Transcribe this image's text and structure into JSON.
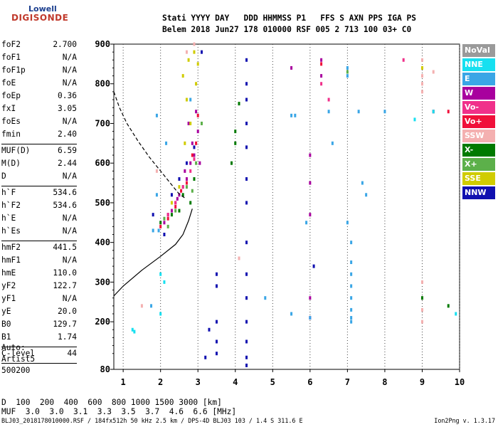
{
  "logo": {
    "line1": "Lowell",
    "line2": "DIGISONDE"
  },
  "header": {
    "line1": "Stati YYYY DAY   DDD HHMMSS P1   FFS S AXN PPS IGA PS",
    "line2": "Belem 2018 Jun27 178 010000 RSF 005 2 713 100 03+ C0"
  },
  "params": [
    {
      "k": "foF2",
      "v": "2.700"
    },
    {
      "k": "foF1",
      "v": "N/A"
    },
    {
      "k": "foF1p",
      "v": "N/A"
    },
    {
      "k": "foE",
      "v": "N/A"
    },
    {
      "k": "foEp",
      "v": "0.36"
    },
    {
      "k": "fxI",
      "v": "3.05"
    },
    {
      "k": "foEs",
      "v": "N/A"
    },
    {
      "k": "fmin",
      "v": "2.40"
    },
    {
      "sep": true
    },
    {
      "k": "MUF(D)",
      "v": "6.59"
    },
    {
      "k": "M(D)",
      "v": "2.44"
    },
    {
      "k": "D",
      "v": "N/A"
    },
    {
      "sep": true
    },
    {
      "k": "h`F",
      "v": "534.6"
    },
    {
      "k": "h`F2",
      "v": "534.6"
    },
    {
      "k": "h`E",
      "v": "N/A"
    },
    {
      "k": "h`Es",
      "v": "N/A"
    },
    {
      "sep": true
    },
    {
      "k": "hmF2",
      "v": "441.5"
    },
    {
      "k": "hmF1",
      "v": "N/A"
    },
    {
      "k": "hmE",
      "v": "110.0"
    },
    {
      "k": "yF2",
      "v": "122.7"
    },
    {
      "k": "yF1",
      "v": "N/A"
    },
    {
      "k": "yE",
      "v": "20.0"
    },
    {
      "k": "B0",
      "v": "129.7"
    },
    {
      "k": "B1",
      "v": "1.74"
    },
    {
      "sep": true
    },
    {
      "k": "C-level",
      "v": "44"
    },
    {
      "sep": true
    }
  ],
  "auto": {
    "line1": "Auto:",
    "line2": "Artist5",
    "line3": "500200"
  },
  "legend": [
    {
      "label": "NoVal",
      "color": "#9a9a9a"
    },
    {
      "label": "NNE",
      "color": "#17e0f0"
    },
    {
      "label": "E",
      "color": "#3aa6e6"
    },
    {
      "label": "W",
      "color": "#a8009e"
    },
    {
      "label": "Vo-",
      "color": "#f0308a"
    },
    {
      "label": "Vo+",
      "color": "#f0103a"
    },
    {
      "label": "SSW",
      "color": "#f4b0b0"
    },
    {
      "label": "X-",
      "color": "#007a00"
    },
    {
      "label": "X+",
      "color": "#5cb04a"
    },
    {
      "label": "SSE",
      "color": "#d0cc00"
    },
    {
      "label": "NNW",
      "color": "#1010b0"
    }
  ],
  "chart_data": {
    "type": "scatter",
    "title": "",
    "xlabel": "",
    "ylabel": "",
    "xlim": [
      0.75,
      10
    ],
    "ylim": [
      80,
      900
    ],
    "xticks": [
      1,
      2,
      3,
      4,
      5,
      6,
      7,
      8,
      9,
      10
    ],
    "yticks": [
      80,
      200,
      300,
      400,
      500,
      600,
      700,
      800,
      900
    ],
    "grid": "x-only dotted",
    "legend_position": "right",
    "trace_o_mode": {
      "style": "solid",
      "points": [
        [
          0.75,
          265
        ],
        [
          1.0,
          290
        ],
        [
          1.5,
          330
        ],
        [
          2.0,
          365
        ],
        [
          2.4,
          395
        ],
        [
          2.6,
          420
        ],
        [
          2.75,
          455
        ],
        [
          2.85,
          485
        ]
      ]
    },
    "trace_profile": {
      "style": "dashed",
      "points": [
        [
          0.75,
          780
        ],
        [
          0.9,
          740
        ],
        [
          1.1,
          700
        ],
        [
          1.4,
          655
        ],
        [
          1.7,
          615
        ],
        [
          2.0,
          580
        ],
        [
          2.3,
          545
        ],
        [
          2.5,
          522
        ],
        [
          2.65,
          512
        ]
      ]
    },
    "series": [
      {
        "name": "W",
        "values": [
          [
            2.1,
            450
          ],
          [
            2.3,
            480
          ],
          [
            2.5,
            520
          ],
          [
            2.7,
            560
          ],
          [
            2.9,
            620
          ],
          [
            3.0,
            680
          ],
          [
            2.8,
            600
          ],
          [
            2.6,
            540
          ],
          [
            2.95,
            730
          ],
          [
            2.2,
            470
          ],
          [
            2.4,
            500
          ],
          [
            2.85,
            650
          ],
          [
            6.0,
            550
          ],
          [
            6.0,
            620
          ],
          [
            6.0,
            470
          ],
          [
            6.0,
            260
          ],
          [
            6.0,
            210
          ],
          [
            6.3,
            820
          ],
          [
            6.3,
            860
          ],
          [
            5.5,
            840
          ],
          [
            2.75,
            700
          ],
          [
            2.65,
            580
          ],
          [
            3.05,
            600
          ],
          [
            2.45,
            510
          ]
        ]
      },
      {
        "name": "E",
        "values": [
          [
            1.8,
            430
          ],
          [
            1.9,
            520
          ],
          [
            2.8,
            760
          ],
          [
            7.0,
            450
          ],
          [
            7.1,
            400
          ],
          [
            7.1,
            320
          ],
          [
            7.1,
            290
          ],
          [
            7.1,
            260
          ],
          [
            7.1,
            230
          ],
          [
            7.1,
            210
          ],
          [
            7.1,
            200
          ],
          [
            7.1,
            350
          ],
          [
            7.0,
            820
          ],
          [
            7.0,
            840
          ],
          [
            7.3,
            730
          ],
          [
            7.5,
            520
          ],
          [
            7.4,
            550
          ],
          [
            6.0,
            210
          ],
          [
            5.5,
            220
          ],
          [
            4.8,
            260
          ],
          [
            5.5,
            720
          ],
          [
            5.6,
            720
          ],
          [
            6.5,
            730
          ],
          [
            8.0,
            730
          ],
          [
            9.3,
            730
          ],
          [
            6.6,
            650
          ],
          [
            5.9,
            450
          ],
          [
            1.75,
            240
          ],
          [
            1.9,
            720
          ],
          [
            1.95,
            430
          ],
          [
            2.15,
            650
          ]
        ]
      },
      {
        "name": "NNW",
        "values": [
          [
            4.3,
            860
          ],
          [
            4.3,
            800
          ],
          [
            4.3,
            760
          ],
          [
            4.3,
            700
          ],
          [
            4.3,
            640
          ],
          [
            4.3,
            560
          ],
          [
            4.3,
            500
          ],
          [
            4.3,
            400
          ],
          [
            4.3,
            320
          ],
          [
            4.3,
            260
          ],
          [
            4.3,
            200
          ],
          [
            4.3,
            150
          ],
          [
            4.3,
            110
          ],
          [
            4.3,
            90
          ],
          [
            3.5,
            320
          ],
          [
            3.5,
            290
          ],
          [
            3.5,
            200
          ],
          [
            3.5,
            150
          ],
          [
            3.5,
            120
          ],
          [
            3.3,
            180
          ],
          [
            3.2,
            110
          ],
          [
            2.1,
            420
          ],
          [
            1.8,
            470
          ],
          [
            3.1,
            880
          ],
          [
            2.5,
            560
          ],
          [
            2.3,
            520
          ],
          [
            2.7,
            600
          ],
          [
            2.9,
            640
          ],
          [
            6.1,
            340
          ]
        ]
      },
      {
        "name": "Vo-",
        "values": [
          [
            2.2,
            470
          ],
          [
            2.6,
            540
          ],
          [
            2.9,
            610
          ],
          [
            2.4,
            500
          ],
          [
            2.8,
            580
          ],
          [
            6.3,
            800
          ],
          [
            6.5,
            760
          ],
          [
            8.5,
            860
          ]
        ]
      },
      {
        "name": "Vo+",
        "values": [
          [
            2.0,
            440
          ],
          [
            2.4,
            490
          ],
          [
            2.7,
            550
          ],
          [
            2.95,
            650
          ],
          [
            3.0,
            720
          ],
          [
            2.55,
            530
          ],
          [
            6.3,
            850
          ],
          [
            9.3,
            730
          ],
          [
            9.7,
            730
          ],
          [
            2.2,
            460
          ],
          [
            2.85,
            620
          ]
        ]
      },
      {
        "name": "SSW",
        "values": [
          [
            9.0,
            860
          ],
          [
            9.0,
            840
          ],
          [
            9.0,
            820
          ],
          [
            9.0,
            800
          ],
          [
            9.0,
            780
          ],
          [
            9.0,
            300
          ],
          [
            9.0,
            260
          ],
          [
            9.0,
            230
          ],
          [
            9.0,
            200
          ],
          [
            1.5,
            240
          ],
          [
            1.9,
            580
          ],
          [
            2.9,
            900
          ],
          [
            2.7,
            880
          ],
          [
            4.1,
            360
          ],
          [
            9.3,
            830
          ]
        ]
      },
      {
        "name": "X-",
        "values": [
          [
            2.0,
            450
          ],
          [
            2.3,
            470
          ],
          [
            2.6,
            520
          ],
          [
            2.9,
            560
          ],
          [
            4.0,
            650
          ],
          [
            4.0,
            680
          ],
          [
            4.1,
            750
          ],
          [
            2.8,
            500
          ],
          [
            3.9,
            600
          ],
          [
            9.0,
            260
          ],
          [
            9.7,
            240
          ],
          [
            2.5,
            480
          ]
        ]
      },
      {
        "name": "X+",
        "values": [
          [
            2.1,
            460
          ],
          [
            2.4,
            480
          ],
          [
            2.7,
            540
          ],
          [
            2.95,
            600
          ],
          [
            3.1,
            700
          ],
          [
            2.2,
            440
          ],
          [
            7.0,
            830
          ],
          [
            2.85,
            530
          ]
        ]
      },
      {
        "name": "SSE",
        "values": [
          [
            2.6,
            820
          ],
          [
            2.75,
            860
          ],
          [
            2.9,
            880
          ],
          [
            3.0,
            850
          ],
          [
            2.7,
            760
          ],
          [
            2.8,
            700
          ],
          [
            2.5,
            540
          ],
          [
            2.3,
            500
          ],
          [
            9.0,
            840
          ],
          [
            2.65,
            650
          ],
          [
            2.95,
            800
          ]
        ]
      },
      {
        "name": "NNE",
        "values": [
          [
            1.3,
            175
          ],
          [
            1.25,
            180
          ],
          [
            2.0,
            220
          ],
          [
            2.0,
            320
          ],
          [
            2.1,
            300
          ],
          [
            9.3,
            730
          ],
          [
            8.8,
            710
          ],
          [
            9.9,
            220
          ]
        ]
      }
    ]
  },
  "footer": {
    "d_label": "D",
    "d_values": "  100  200  400  600  800 1000 1500 3000 [km]",
    "muf_label": "MUF",
    "muf_values": "  3.0  3.0  3.1  3.3  3.5  3.7  4.6  6.6 [MHz]",
    "info": "BLJ03_2018178010000.RSF / 184fx512h 50 kHz 2.5 km / DPS-4D BLJ03 103 / 1.4 S 311.6 E",
    "version": "Ion2Png v. 1.3.17"
  }
}
